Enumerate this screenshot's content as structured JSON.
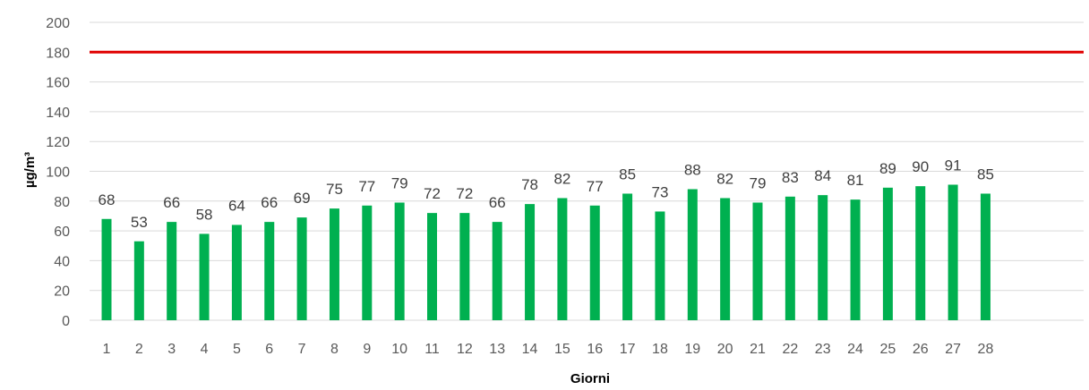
{
  "chart_data": {
    "type": "bar",
    "title": "",
    "xlabel": "Giorni",
    "ylabel": "µg/m³",
    "ylim": [
      0,
      200
    ],
    "yticks": [
      0,
      20,
      40,
      60,
      80,
      100,
      120,
      140,
      160,
      180,
      200
    ],
    "categories": [
      "1",
      "2",
      "3",
      "4",
      "5",
      "6",
      "7",
      "8",
      "9",
      "10",
      "11",
      "12",
      "13",
      "14",
      "15",
      "16",
      "17",
      "18",
      "19",
      "20",
      "21",
      "22",
      "23",
      "24",
      "25",
      "26",
      "27",
      "28"
    ],
    "series": [
      {
        "values": [
          68,
          53,
          66,
          58,
          64,
          66,
          69,
          75,
          77,
          79,
          72,
          72,
          66,
          78,
          82,
          77,
          85,
          73,
          88,
          82,
          79,
          83,
          84,
          81,
          89,
          90,
          91,
          85
        ],
        "color": "#00b050"
      }
    ],
    "threshold": {
      "value": 180,
      "color": "#e00000"
    },
    "grid": true,
    "legend": "none",
    "colors": {
      "grid": "#d9d9d9",
      "text": "#595959",
      "label": "#404040"
    }
  }
}
